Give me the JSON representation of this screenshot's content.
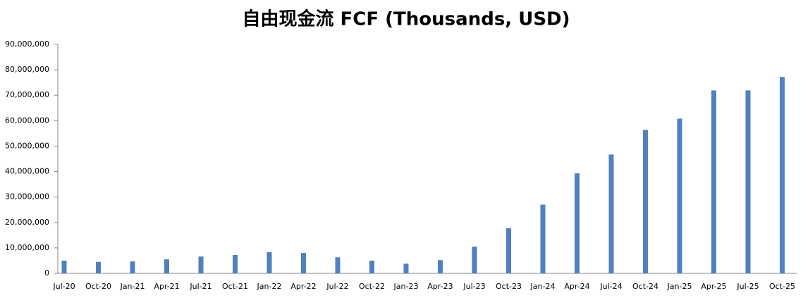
{
  "chart_data": {
    "type": "bar",
    "title": "自由现金流 FCF (Thousands, USD)",
    "categories": [
      "Jul-20",
      "Oct-20",
      "Jan-21",
      "Apr-21",
      "Jul-21",
      "Oct-21",
      "Jan-22",
      "Apr-22",
      "Jul-22",
      "Oct-22",
      "Jan-23",
      "Apr-23",
      "Jul-23",
      "Oct-23",
      "Jan-24",
      "Apr-24",
      "Jul-24",
      "Oct-24",
      "Jan-25",
      "Apr-25",
      "Jul-25",
      "Oct-25"
    ],
    "values": [
      5000000,
      4500000,
      4700000,
      5500000,
      6600000,
      7200000,
      8300000,
      8000000,
      6300000,
      5000000,
      3800000,
      5200000,
      10500000,
      17700000,
      27000000,
      39300000,
      46700000,
      56400000,
      60800000,
      71900000,
      71900000,
      77200000
    ],
    "color": "#4f81bd",
    "ylim": [
      0,
      90000000
    ],
    "yticks": [
      {
        "value": 0,
        "label": "0"
      },
      {
        "value": 10000000,
        "label": "10,000,000"
      },
      {
        "value": 20000000,
        "label": "20,000,000"
      },
      {
        "value": 30000000,
        "label": "30,000,000"
      },
      {
        "value": 40000000,
        "label": "40,000,000"
      },
      {
        "value": 50000000,
        "label": "50,000,000"
      },
      {
        "value": 60000000,
        "label": "60,000,000"
      },
      {
        "value": 70000000,
        "label": "70,000,000"
      },
      {
        "value": 80000000,
        "label": "80,000,000"
      },
      {
        "value": 90000000,
        "label": "90,000,000"
      }
    ],
    "grid": false
  }
}
